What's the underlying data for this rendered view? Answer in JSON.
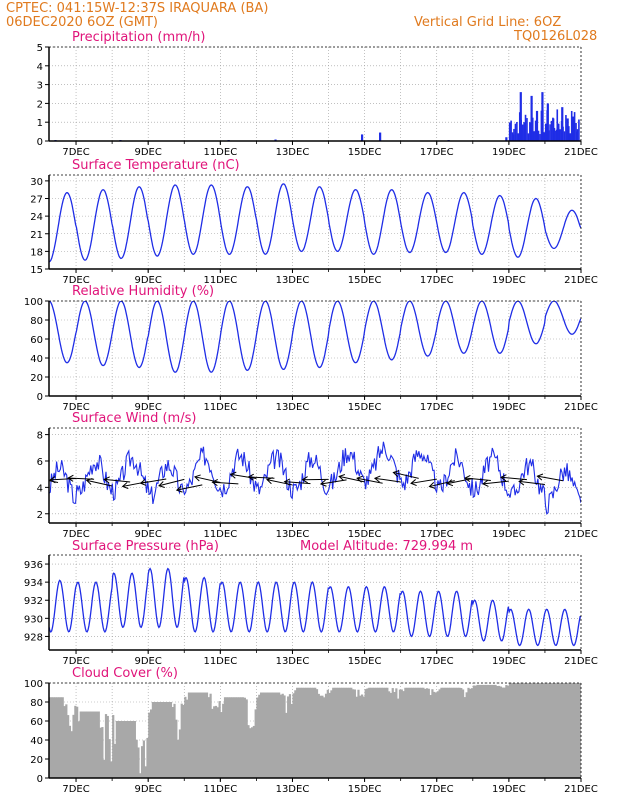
{
  "header": {
    "line1_left": "CPTEC:   041:15W-12:37S   IRAQUARA (BA)",
    "line2_left": "06DEC2020 6OZ (GMT)",
    "line2_right": "Vertical Grid Line: 6OZ",
    "line3_right": "TQ0126L028"
  },
  "model_altitude": "Model Altitude: 729.994 m",
  "colors": {
    "header": "#e07a1e",
    "title": "#e0147a",
    "line": "#1f2de6",
    "cloud": "#a8a8a8",
    "arrow": "#000000"
  },
  "chart_data": [
    {
      "id": "precipitation",
      "type": "bar",
      "title": "Precipitation (mm/h)",
      "ylim": [
        0,
        5
      ],
      "yticks": [
        0,
        1,
        2,
        3,
        4,
        5
      ],
      "xticks": [
        "7DEC",
        "9DEC",
        "11DEC",
        "13DEC",
        "15DEC",
        "17DEC",
        "19DEC",
        "21DEC"
      ],
      "grid": true,
      "description_points": [
        {
          "day": 6.4,
          "value": 0.05
        },
        {
          "day": 8.2,
          "value": 0.05
        },
        {
          "day": 11.2,
          "value": 0.05
        },
        {
          "day": 12.5,
          "value": 0.08
        },
        {
          "day": 14.9,
          "value": 0.35
        },
        {
          "day": 15.4,
          "value": 0.45
        },
        {
          "day": 17.3,
          "value": 0.05
        },
        {
          "day": 18.9,
          "value": 0.2
        },
        {
          "day": 19.1,
          "value": 0.35
        },
        {
          "day": 19.3,
          "value": 2.6
        },
        {
          "day": 19.4,
          "value": 1.0
        },
        {
          "day": 19.6,
          "value": 2.4
        },
        {
          "day": 19.75,
          "value": 1.6
        },
        {
          "day": 19.9,
          "value": 2.6
        },
        {
          "day": 20.05,
          "value": 2.0
        },
        {
          "day": 20.2,
          "value": 1.2
        },
        {
          "day": 20.3,
          "value": 0.6
        },
        {
          "day": 20.45,
          "value": 1.8
        },
        {
          "day": 20.6,
          "value": 1.2
        },
        {
          "day": 20.75,
          "value": 1.3
        },
        {
          "day": 20.85,
          "value": 0.5
        }
      ]
    },
    {
      "id": "temperature",
      "type": "line",
      "title": "Surface Temperature (nC)",
      "ylim": [
        15,
        31
      ],
      "yticks": [
        15,
        18,
        21,
        24,
        27,
        30
      ],
      "xticks": [
        "7DEC",
        "9DEC",
        "11DEC",
        "13DEC",
        "15DEC",
        "17DEC",
        "19DEC",
        "21DEC"
      ],
      "grid": true,
      "daily_min": [
        16.2,
        16.5,
        16.8,
        17.2,
        17.5,
        17.5,
        17.5,
        18.0,
        18.0,
        17.5,
        17.8,
        17.8,
        17.5,
        17.0,
        18.5,
        19.5
      ],
      "daily_max": [
        28.0,
        28.5,
        29.0,
        29.3,
        29.3,
        29.0,
        29.5,
        29.0,
        28.5,
        28.5,
        28.0,
        28.0,
        27.5,
        27.0,
        25.0,
        24.5
      ]
    },
    {
      "id": "humidity",
      "type": "line",
      "title": "Relative Humidity (%)",
      "ylim": [
        0,
        100
      ],
      "yticks": [
        0,
        20,
        40,
        60,
        80,
        100
      ],
      "xticks": [
        "7DEC",
        "9DEC",
        "11DEC",
        "13DEC",
        "15DEC",
        "17DEC",
        "19DEC",
        "21DEC"
      ],
      "grid": true,
      "daily_max": [
        100,
        100,
        100,
        100,
        100,
        100,
        100,
        100,
        100,
        100,
        100,
        100,
        100,
        100,
        100,
        95
      ],
      "daily_min": [
        35,
        32,
        30,
        25,
        25,
        27,
        28,
        30,
        35,
        38,
        42,
        45,
        45,
        55,
        65,
        68
      ]
    },
    {
      "id": "wind",
      "type": "line",
      "title": "Surface Wind (m/s)",
      "ylim": [
        1.3,
        8.5
      ],
      "yticks": [
        2,
        4,
        6,
        8
      ],
      "xticks": [
        "7DEC",
        "9DEC",
        "11DEC",
        "13DEC",
        "15DEC",
        "17DEC",
        "19DEC",
        "21DEC"
      ],
      "grid": true,
      "daily_mean": [
        4.2,
        4.8,
        5.0,
        4.5,
        5.2,
        5.2,
        5.0,
        5.0,
        5.5,
        5.8,
        5.5,
        5.0,
        5.0,
        4.5,
        4.0,
        4.5
      ]
    },
    {
      "id": "pressure",
      "type": "line",
      "title": "Surface Pressure (hPa)",
      "ylim": [
        926.5,
        937
      ],
      "yticks": [
        928,
        930,
        932,
        934,
        936
      ],
      "xticks": [
        "7DEC",
        "9DEC",
        "11DEC",
        "13DEC",
        "15DEC",
        "17DEC",
        "19DEC",
        "21DEC"
      ],
      "grid": true,
      "daily_max": [
        934.2,
        934.0,
        935.0,
        935.5,
        934.5,
        934.0,
        934.0,
        934.0,
        933.5,
        933.5,
        933.0,
        933.0,
        932.0,
        931.0,
        931.0,
        930.5
      ],
      "daily_min": [
        928.5,
        928.5,
        929.0,
        929.0,
        928.5,
        928.5,
        928.5,
        928.5,
        928.5,
        928.5,
        928.0,
        928.0,
        927.5,
        927.0,
        927.0,
        927.0
      ]
    },
    {
      "id": "cloud",
      "type": "bar",
      "title": "Cloud Cover (%)",
      "ylim": [
        0,
        100
      ],
      "yticks": [
        0,
        20,
        40,
        60,
        80,
        100
      ],
      "xticks": [
        "7DEC",
        "9DEC",
        "11DEC",
        "13DEC",
        "15DEC",
        "17DEC",
        "19DEC",
        "21DEC"
      ],
      "grid": true,
      "daily_level": [
        85,
        70,
        60,
        80,
        90,
        85,
        90,
        95,
        95,
        95,
        95,
        95,
        98,
        100,
        100,
        100
      ]
    }
  ]
}
